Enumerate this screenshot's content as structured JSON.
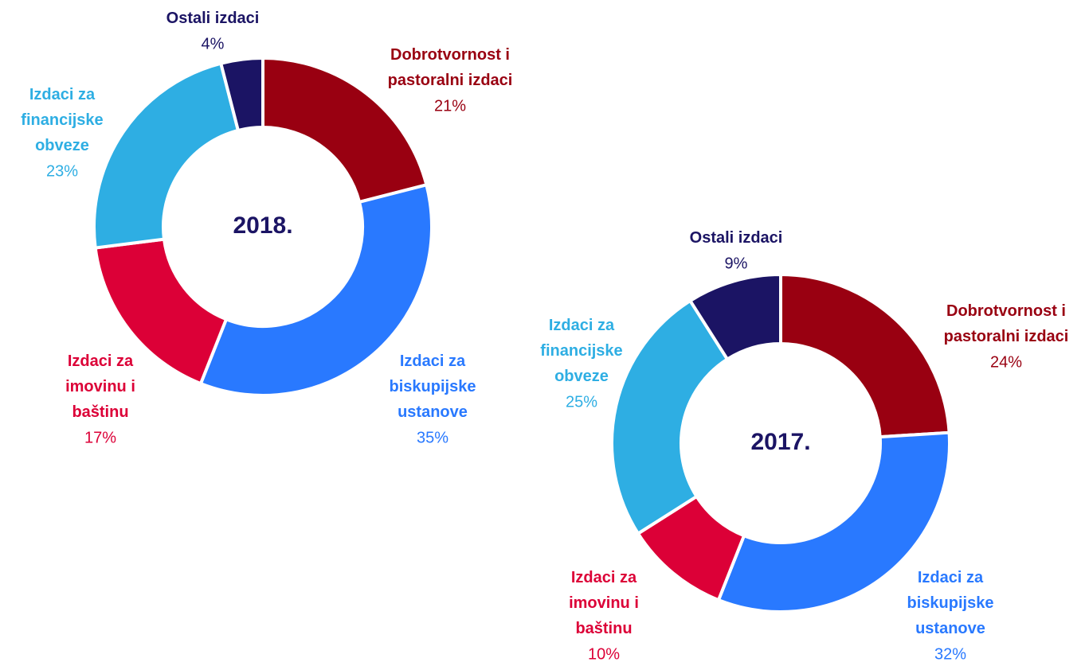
{
  "chart_data": [
    {
      "type": "donut",
      "center_label": "2018.",
      "categories": [
        "Dobrotvornost i\npastoralni izdaci",
        "Izdaci za\nbiskupijske\nustanove",
        "Izdaci za\nimovinu i\nbaštinu",
        "Izdaci za\nfinancijske\nobveze",
        "Ostali izdaci"
      ],
      "values": [
        21,
        35,
        17,
        23,
        4
      ],
      "value_labels": [
        "21%",
        "35%",
        "17%",
        "23%",
        "4%"
      ],
      "colors": [
        "#990011",
        "#2979ff",
        "#dc0037",
        "#2eaee3",
        "#1b1464"
      ]
    },
    {
      "type": "donut",
      "center_label": "2017.",
      "categories": [
        "Dobrotvornost i\npastoralni izdaci",
        "Izdaci za\nbiskupijske\nustanove",
        "Izdaci za\nimovinu i\nbaštinu",
        "Izdaci za\nfinancijske\nobveze",
        "Ostali izdaci"
      ],
      "values": [
        24,
        32,
        10,
        25,
        9
      ],
      "value_labels": [
        "24%",
        "32%",
        "10%",
        "25%",
        "9%"
      ],
      "colors": [
        "#990011",
        "#2979ff",
        "#dc0037",
        "#2eaee3",
        "#1b1464"
      ]
    }
  ]
}
